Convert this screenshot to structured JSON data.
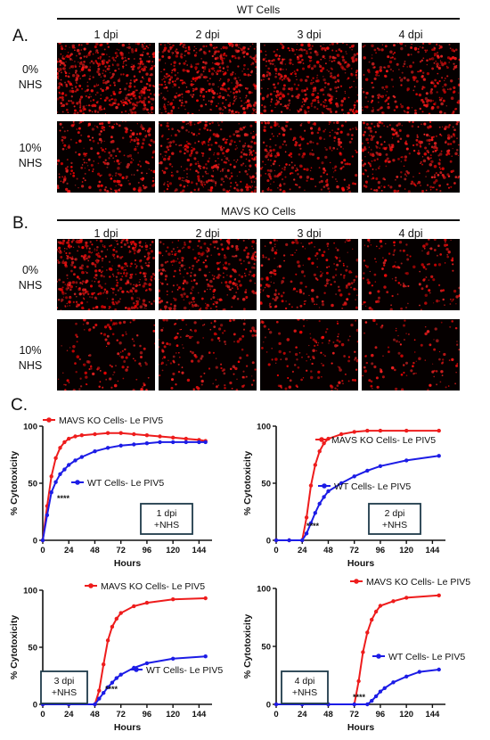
{
  "panel_a": {
    "letter": "A.",
    "title": "WT Cells",
    "columns": [
      "1 dpi",
      "2 dpi",
      "3 dpi",
      "4 dpi"
    ],
    "rows": [
      {
        "lines": [
          "0%",
          "NHS"
        ]
      },
      {
        "lines": [
          "10%",
          "NHS"
        ]
      }
    ],
    "red_density": [
      [
        1.0,
        0.85,
        0.75,
        0.55
      ],
      [
        0.55,
        0.7,
        0.5,
        0.6
      ]
    ]
  },
  "panel_b": {
    "letter": "B.",
    "title": "MAVS KO Cells",
    "columns": [
      "1 dpi",
      "2 dpi",
      "3 dpi",
      "4 dpi"
    ],
    "rows": [
      {
        "lines": [
          "0%",
          "NHS"
        ]
      },
      {
        "lines": [
          "10%",
          "NHS"
        ]
      }
    ],
    "red_density": [
      [
        0.85,
        0.6,
        0.4,
        0.3
      ],
      [
        0.25,
        0.3,
        0.25,
        0.2
      ]
    ]
  },
  "panel_c": {
    "letter": "C."
  },
  "colors": {
    "mavs": "#ee1c1c",
    "wt": "#1c1ce6",
    "axis": "#111111"
  },
  "chart_data": [
    {
      "type": "line",
      "ylabel": "% Cytotoxicity",
      "xlabel": "Hours",
      "xlim": [
        0,
        156
      ],
      "ylim": [
        0,
        100
      ],
      "xticks": [
        0,
        24,
        48,
        72,
        96,
        120,
        144
      ],
      "yticks": [
        0,
        50,
        100
      ],
      "box": [
        "1 dpi",
        "+NHS"
      ],
      "significance": "****",
      "series": [
        {
          "name": "MAVS KO Cells- Le PIV5",
          "x": [
            0,
            4,
            8,
            12,
            16,
            20,
            24,
            30,
            36,
            48,
            60,
            72,
            84,
            96,
            108,
            120,
            132,
            144,
            150
          ],
          "y": [
            0,
            30,
            56,
            72,
            81,
            86,
            89,
            91,
            92,
            93,
            94,
            94,
            93,
            92,
            91,
            90,
            89,
            88,
            87
          ]
        },
        {
          "name": "WT Cells- Le PIV5",
          "x": [
            0,
            4,
            8,
            12,
            16,
            20,
            24,
            30,
            36,
            48,
            60,
            72,
            84,
            96,
            108,
            120,
            132,
            144,
            150
          ],
          "y": [
            0,
            22,
            42,
            51,
            58,
            62,
            66,
            70,
            73,
            78,
            81,
            83,
            84,
            85,
            86,
            86,
            86,
            86,
            86
          ]
        }
      ]
    },
    {
      "type": "line",
      "ylabel": "% Cytotoxicity",
      "xlabel": "Hours",
      "xlim": [
        0,
        156
      ],
      "ylim": [
        0,
        100
      ],
      "xticks": [
        0,
        24,
        48,
        72,
        96,
        120,
        144
      ],
      "yticks": [
        0,
        50,
        100
      ],
      "box": [
        "2 dpi",
        "+NHS"
      ],
      "significance": "****",
      "series": [
        {
          "name": "MAVS KO Cells- Le PIV5",
          "x": [
            0,
            12,
            24,
            28,
            32,
            36,
            40,
            44,
            48,
            60,
            72,
            84,
            96,
            120,
            150
          ],
          "y": [
            0,
            0,
            0,
            20,
            48,
            66,
            78,
            85,
            89,
            93,
            95,
            96,
            96,
            96,
            96
          ]
        },
        {
          "name": "WT Cells- Le PIV5",
          "x": [
            0,
            12,
            24,
            28,
            32,
            36,
            40,
            44,
            48,
            60,
            72,
            84,
            96,
            120,
            150
          ],
          "y": [
            0,
            0,
            0,
            6,
            15,
            24,
            32,
            38,
            43,
            50,
            56,
            61,
            65,
            70,
            74
          ]
        }
      ]
    },
    {
      "type": "line",
      "ylabel": "% Cytotoxicity",
      "xlabel": "Hours",
      "xlim": [
        0,
        156
      ],
      "ylim": [
        0,
        100
      ],
      "xticks": [
        0,
        24,
        48,
        72,
        96,
        120,
        144
      ],
      "yticks": [
        0,
        50,
        100
      ],
      "box": [
        "3 dpi",
        "+NHS"
      ],
      "significance": "****",
      "series": [
        {
          "name": "MAVS KO Cells- Le PIV5",
          "x": [
            0,
            24,
            48,
            52,
            56,
            60,
            64,
            68,
            72,
            84,
            96,
            120,
            150
          ],
          "y": [
            0,
            0,
            0,
            12,
            35,
            56,
            68,
            75,
            80,
            86,
            89,
            92,
            93
          ]
        },
        {
          "name": "WT Cells- Le PIV5",
          "x": [
            0,
            24,
            48,
            52,
            56,
            60,
            64,
            68,
            72,
            84,
            96,
            120,
            150
          ],
          "y": [
            0,
            0,
            0,
            5,
            10,
            15,
            19,
            23,
            26,
            32,
            36,
            40,
            42
          ]
        }
      ]
    },
    {
      "type": "line",
      "ylabel": "% Cytotoxicity",
      "xlabel": "Hours",
      "xlim": [
        0,
        156
      ],
      "ylim": [
        0,
        100
      ],
      "xticks": [
        0,
        24,
        48,
        72,
        96,
        120,
        144
      ],
      "yticks": [
        0,
        50,
        100
      ],
      "box": [
        "4 dpi",
        "+NHS"
      ],
      "significance": "****",
      "series": [
        {
          "name": "MAVS KO Cells- Le PIV5",
          "x": [
            0,
            24,
            48,
            72,
            76,
            80,
            84,
            88,
            92,
            96,
            108,
            120,
            150
          ],
          "y": [
            0,
            0,
            0,
            0,
            20,
            45,
            62,
            73,
            80,
            85,
            89,
            92,
            94
          ]
        },
        {
          "name": "WT Cells- Le PIV5",
          "x": [
            0,
            24,
            48,
            72,
            84,
            88,
            92,
            96,
            100,
            108,
            120,
            132,
            150
          ],
          "y": [
            0,
            0,
            0,
            0,
            0,
            3,
            7,
            11,
            14,
            19,
            24,
            28,
            30
          ]
        }
      ]
    }
  ]
}
